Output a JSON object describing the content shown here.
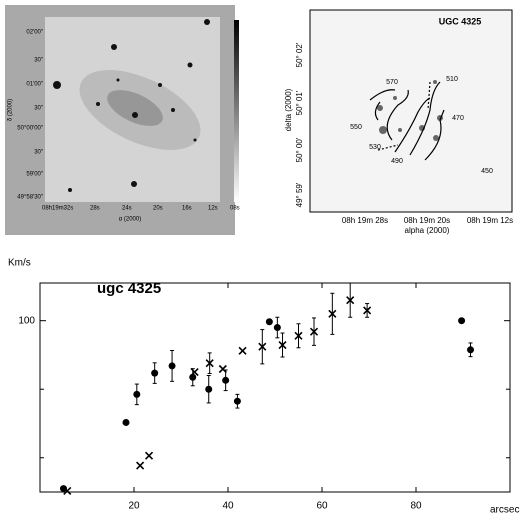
{
  "images": [
    {
      "x_label": "α (2000)",
      "y_label": "δ (2000)",
      "x_ticks": [
        "08h19m32s",
        "28s",
        "24s",
        "20s",
        "16s",
        "12s",
        "08s"
      ],
      "y_ticks": [
        "02'00\"",
        "30\"",
        "01'00\"",
        "30\"",
        "50°00'00\"",
        "30\"",
        "59'00\"",
        "49°58'30\""
      ]
    },
    {
      "title": "UGC 4325",
      "x_label": "alpha (2000)",
      "y_label": "delta (2000)",
      "x_ticks": [
        "08h 19m 28s",
        "08h 19m 20s",
        "08h 19m 12s"
      ],
      "y_ticks": [
        "50° 02'",
        "50° 01'",
        "50° 00'",
        "49° 59'"
      ],
      "contour_labels": [
        "570",
        "510",
        "470",
        "550",
        "530",
        "490",
        "450"
      ]
    }
  ],
  "chart_data": {
    "type": "scatter",
    "title": "ugc 4325",
    "x_label": "arcsec",
    "y_label": "Km/s",
    "xlim": [
      0,
      100
    ],
    "xticks": [
      20,
      40,
      60,
      80
    ],
    "ylim": [
      50,
      111
    ],
    "yticks": [
      100
    ],
    "minor_yticks": [
      60,
      80
    ],
    "series": [
      {
        "marker": "dot",
        "color": "#000000",
        "x": [
          5,
          18.3,
          20.6,
          24.4,
          28.1,
          32.5,
          35.9,
          39.5,
          42,
          48.8,
          50.5,
          89.7,
          91.6
        ],
        "values": [
          51,
          70.3,
          78.5,
          84.7,
          86.8,
          83.5,
          80,
          82.6,
          76.5,
          99.7,
          98,
          100,
          91.5
        ],
        "errors": [
          null,
          null,
          3,
          3,
          4.5,
          2.5,
          4,
          3,
          2,
          null,
          3,
          null,
          2
        ]
      },
      {
        "marker": "cross",
        "color": "#000000",
        "x": [
          5.8,
          21.3,
          23.2,
          32.9,
          36.1,
          38.9,
          43.1,
          47.3,
          51.6,
          55,
          58.3,
          62.2,
          66,
          69.6
        ],
        "values": [
          50.3,
          57.7,
          60.6,
          85,
          87.6,
          85.9,
          91.2,
          92.4,
          92.9,
          95.6,
          96.8,
          102,
          106,
          103
        ],
        "errors": [
          null,
          null,
          null,
          null,
          3,
          null,
          null,
          5,
          3.5,
          3.5,
          4,
          6,
          5,
          2
        ]
      }
    ]
  }
}
